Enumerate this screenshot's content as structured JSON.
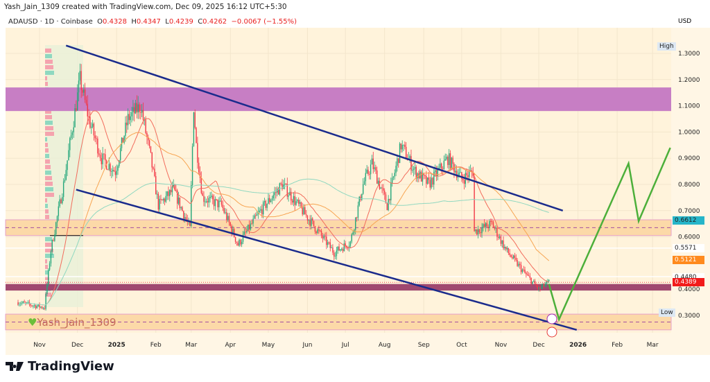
{
  "credit": "Yash_Jain_1309 created with TradingView.com, Dec 09, 2025 16:12 UTC+5:30",
  "legend": {
    "symbol": "ADAUSD · 1D · Coinbase",
    "o_label": "O",
    "o": "0.4328",
    "h_label": "H",
    "h": "0.4347",
    "l_label": "L",
    "l": "0.4239",
    "c_label": "C",
    "c": "0.4262",
    "change": "−0.0067 (−1.55%)"
  },
  "currency": "USD",
  "tags": {
    "high": "High",
    "low": "Low"
  },
  "watermark": "Yash_Jain_1309",
  "brand": "TradingView",
  "price_labels": [
    {
      "text": "0.6612",
      "bg": "#26b5c9",
      "fg": "#222"
    },
    {
      "text": "0.5571",
      "bg": "#ffffff",
      "fg": "#222"
    },
    {
      "text": "0.5121",
      "bg": "#ff8a1e",
      "fg": "#ffffff"
    },
    {
      "text": "0.4480",
      "bg": "#ffffff",
      "fg": "#222"
    },
    {
      "text": "0.4389",
      "bg": "#f21b1b",
      "fg": "#ffffff"
    }
  ],
  "chart_data": {
    "type": "candlestick",
    "title": "ADAUSD · 1D · Coinbase",
    "ylim": [
      0.24,
      1.38
    ],
    "y_ticks": [
      "1.3000",
      "1.2000",
      "1.1000",
      "1.0000",
      "0.9000",
      "0.8000",
      "0.7000",
      "0.6000",
      "0.4000",
      "0.3000"
    ],
    "x_ticks": [
      "Nov",
      "Dec",
      "2025",
      "Feb",
      "Mar",
      "Apr",
      "May",
      "Jun",
      "Jul",
      "Aug",
      "Sep",
      "Oct",
      "Nov",
      "Dec",
      "2026",
      "Feb",
      "Mar"
    ],
    "close_keypoints": [
      [
        "2024-10-15",
        0.35
      ],
      [
        "2024-11-05",
        0.33
      ],
      [
        "2024-11-10",
        0.55
      ],
      [
        "2024-11-20",
        0.8
      ],
      [
        "2024-12-03",
        1.2
      ],
      [
        "2024-12-10",
        1.05
      ],
      [
        "2024-12-20",
        0.9
      ],
      [
        "2024-12-31",
        0.85
      ],
      [
        "2025-01-10",
        1.05
      ],
      [
        "2025-01-20",
        1.1
      ],
      [
        "2025-01-28",
        0.9
      ],
      [
        "2025-02-03",
        0.72
      ],
      [
        "2025-02-15",
        0.78
      ],
      [
        "2025-02-28",
        0.63
      ],
      [
        "2025-03-03",
        1.1
      ],
      [
        "2025-03-05",
        0.95
      ],
      [
        "2025-03-10",
        0.75
      ],
      [
        "2025-03-25",
        0.72
      ],
      [
        "2025-04-07",
        0.57
      ],
      [
        "2025-04-25",
        0.7
      ],
      [
        "2025-05-12",
        0.8
      ],
      [
        "2025-05-31",
        0.68
      ],
      [
        "2025-06-22",
        0.54
      ],
      [
        "2025-07-05",
        0.58
      ],
      [
        "2025-07-15",
        0.8
      ],
      [
        "2025-07-22",
        0.88
      ],
      [
        "2025-08-03",
        0.72
      ],
      [
        "2025-08-14",
        0.95
      ],
      [
        "2025-08-25",
        0.85
      ],
      [
        "2025-09-05",
        0.8
      ],
      [
        "2025-09-20",
        0.9
      ],
      [
        "2025-10-01",
        0.82
      ],
      [
        "2025-10-10",
        0.85
      ],
      [
        "2025-10-11",
        0.62
      ],
      [
        "2025-10-25",
        0.65
      ],
      [
        "2025-11-05",
        0.55
      ],
      [
        "2025-11-20",
        0.46
      ],
      [
        "2025-12-01",
        0.4
      ],
      [
        "2025-12-09",
        0.4262
      ]
    ],
    "zones": [
      {
        "from": 1.08,
        "to": 1.17,
        "color": "#c77ec4"
      },
      {
        "from": 0.605,
        "to": 0.665,
        "color": "#fcd9a8"
      },
      {
        "from": 0.395,
        "to": 0.42,
        "color": "#a04870"
      },
      {
        "from": 0.245,
        "to": 0.305,
        "color": "#fcd9a8"
      }
    ],
    "channel": {
      "upper": [
        [
          "2024-11-22",
          1.33
        ],
        [
          "2025-12-20",
          0.7
        ]
      ],
      "lower": [
        [
          "2024-11-30",
          0.78
        ],
        [
          "2025-12-31",
          0.245
        ]
      ]
    },
    "projection": [
      [
        "2025-12-09",
        0.42
      ],
      [
        "2025-12-17",
        0.285
      ],
      [
        "2026-02-10",
        0.88
      ],
      [
        "2026-02-18",
        0.66
      ],
      [
        "2026-03-15",
        0.94
      ]
    ],
    "colors": {
      "up": "#22a67a",
      "down": "#f23645",
      "channel": "#1a2b8c",
      "projection": "#4caf3a",
      "background": "#fff3db"
    }
  }
}
